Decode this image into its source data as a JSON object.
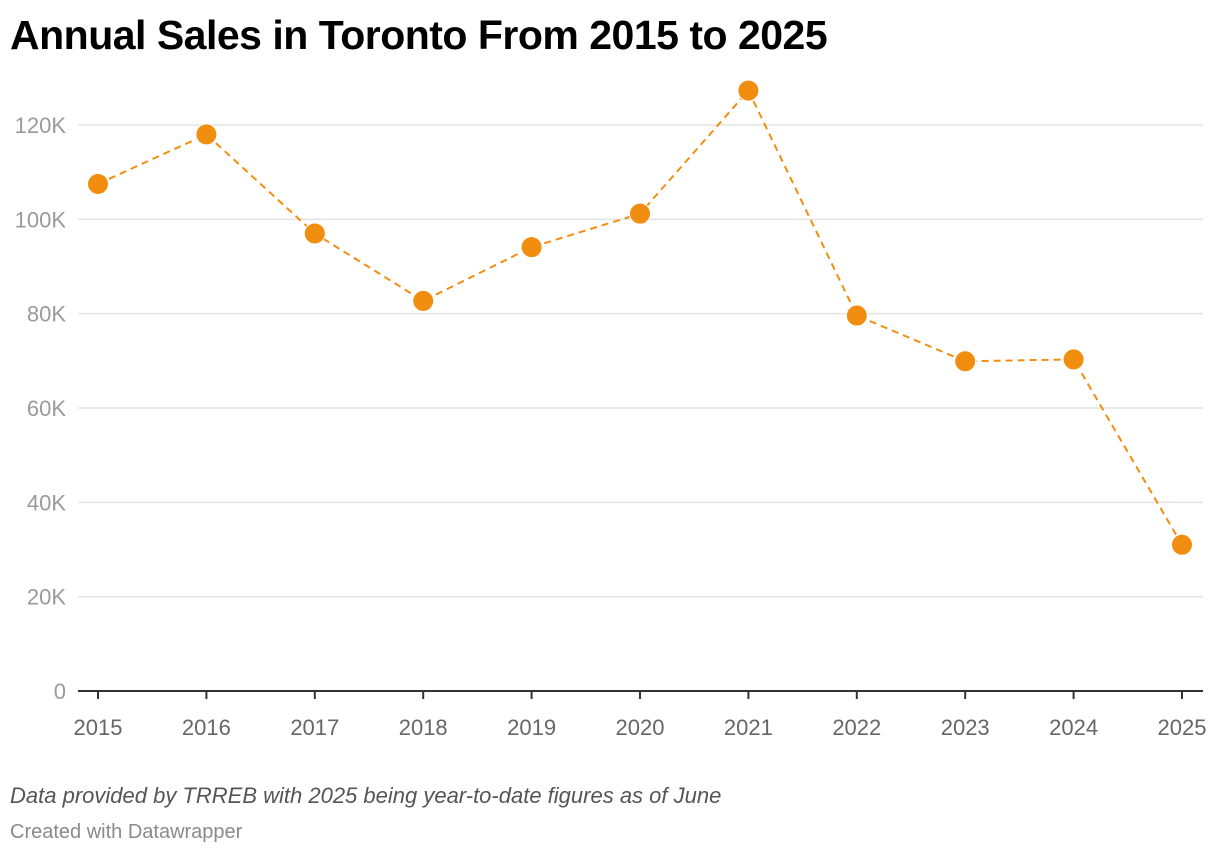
{
  "chart_data": {
    "type": "line",
    "title": "Annual Sales in Toronto From 2015 to 2025",
    "notes": "Data provided by TRREB with 2025 being year-to-date figures as of June",
    "credit": "Created with Datawrapper",
    "xlabel": "",
    "ylabel": "",
    "categories": [
      "2015",
      "2016",
      "2017",
      "2018",
      "2019",
      "2020",
      "2021",
      "2022",
      "2023",
      "2024",
      "2025"
    ],
    "series": [
      {
        "values": [
          107500,
          118000,
          97000,
          82700,
          94100,
          101200,
          127300,
          79600,
          69900,
          70300,
          31000
        ],
        "color": "#f28e0f"
      }
    ],
    "ylim": [
      0,
      130000
    ],
    "yticks": [
      0,
      20000,
      40000,
      60000,
      80000,
      100000,
      120000
    ],
    "ytick_labels": [
      "0",
      "20K",
      "40K",
      "60K",
      "80K",
      "100K",
      "120K"
    ],
    "line_style": "dashed",
    "markers": "circle",
    "grid": true,
    "legend": "none"
  }
}
